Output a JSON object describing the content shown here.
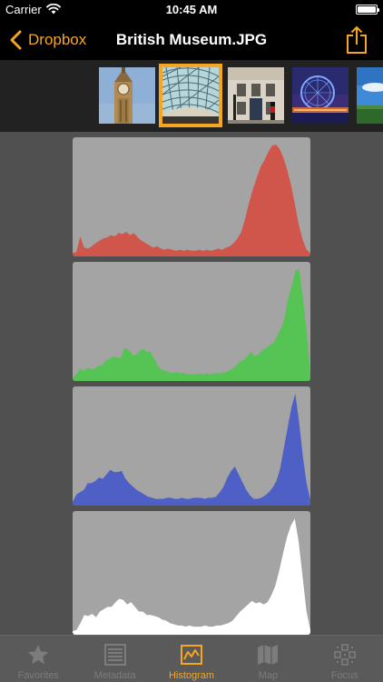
{
  "status_bar": {
    "carrier": "Carrier",
    "time": "10:45 AM"
  },
  "nav": {
    "back_label": "Dropbox",
    "title": "British Museum.JPG",
    "share_icon": "share-icon"
  },
  "thumbnails": [
    {
      "subject": "big-ben",
      "selected": false
    },
    {
      "subject": "british-museum-roof",
      "selected": true
    },
    {
      "subject": "buckingham-palace-guard",
      "selected": false
    },
    {
      "subject": "london-eye-night",
      "selected": false
    },
    {
      "subject": "park-sky",
      "selected": false
    }
  ],
  "histograms": {
    "channels": [
      {
        "name": "red",
        "color": "#d0564c",
        "levels": [
          3,
          4,
          18,
          8,
          7,
          9,
          12,
          14,
          16,
          17,
          19,
          18,
          21,
          20,
          22,
          19,
          21,
          17,
          14,
          12,
          10,
          8,
          9,
          7,
          6,
          7,
          6,
          5,
          6,
          5,
          6,
          5,
          5,
          6,
          5,
          6,
          5,
          6,
          7,
          6,
          8,
          9,
          12,
          16,
          22,
          34,
          48,
          60,
          70,
          80,
          86,
          93,
          99,
          100,
          96,
          88,
          77,
          63,
          46,
          28,
          15,
          6,
          3
        ]
      },
      {
        "name": "green",
        "color": "#55c455",
        "levels": [
          3,
          6,
          11,
          9,
          12,
          11,
          11,
          14,
          14,
          19,
          20,
          22,
          21,
          21,
          30,
          28,
          24,
          23,
          27,
          29,
          26,
          26,
          20,
          13,
          10,
          9,
          8,
          7,
          8,
          7,
          7,
          6,
          6,
          6,
          7,
          6,
          7,
          6,
          7,
          7,
          7,
          8,
          9,
          11,
          14,
          17,
          19,
          22,
          26,
          22,
          24,
          28,
          29,
          32,
          34,
          40,
          47,
          55,
          74,
          85,
          99,
          100,
          74,
          44,
          6
        ]
      },
      {
        "name": "blue",
        "color": "#4e5fc5",
        "levels": [
          3,
          10,
          12,
          14,
          20,
          20,
          22,
          25,
          24,
          28,
          32,
          30,
          30,
          31,
          24,
          20,
          17,
          14,
          12,
          10,
          8,
          7,
          6,
          6,
          6,
          7,
          7,
          6,
          6,
          7,
          6,
          6,
          7,
          7,
          7,
          6,
          7,
          7,
          8,
          12,
          17,
          25,
          31,
          35,
          28,
          21,
          14,
          9,
          6,
          6,
          7,
          9,
          12,
          16,
          22,
          33,
          52,
          70,
          88,
          100,
          75,
          44,
          20,
          5
        ]
      },
      {
        "name": "luminance",
        "color": "#ffffff",
        "levels": [
          3,
          4,
          10,
          17,
          16,
          18,
          15,
          20,
          22,
          24,
          24,
          28,
          31,
          30,
          26,
          28,
          24,
          20,
          20,
          17,
          17,
          16,
          15,
          13,
          12,
          10,
          9,
          8,
          8,
          7,
          8,
          7,
          7,
          7,
          8,
          7,
          7,
          8,
          8,
          9,
          10,
          12,
          16,
          20,
          23,
          26,
          29,
          27,
          28,
          26,
          28,
          34,
          42,
          55,
          70,
          84,
          94,
          100,
          80,
          50,
          20,
          4
        ]
      }
    ]
  },
  "tab_bar": {
    "tabs": [
      {
        "label": "Favorites",
        "icon": "star-icon",
        "active": false
      },
      {
        "label": "Metadata",
        "icon": "list-icon",
        "active": false
      },
      {
        "label": "Histogram",
        "icon": "histogram-icon",
        "active": true
      },
      {
        "label": "Map",
        "icon": "map-icon",
        "active": false
      },
      {
        "label": "Focus",
        "icon": "focus-grid-icon",
        "active": false
      }
    ]
  },
  "colors": {
    "accent": "#f5a623",
    "inactive": "#7c7c7c",
    "panel": "#a4a4a4"
  }
}
